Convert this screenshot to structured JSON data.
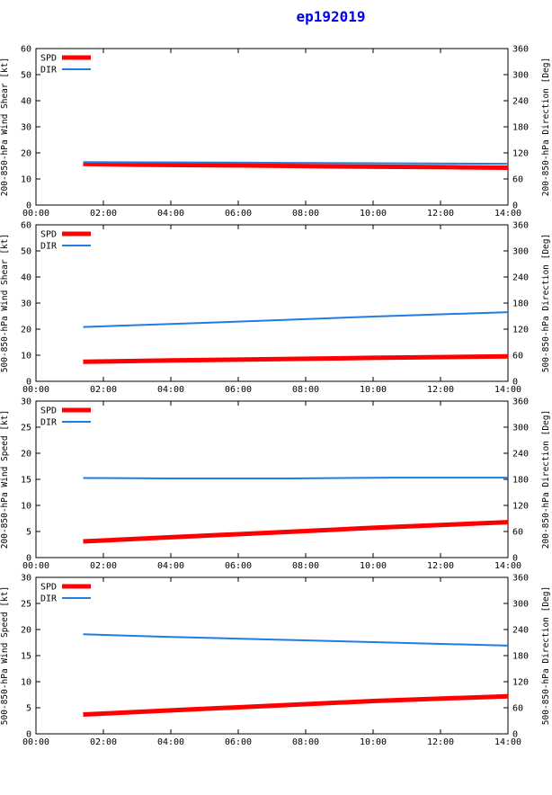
{
  "page_title": "ep192019",
  "colors": {
    "spd": "#ff0000",
    "dir": "#1e7fe0",
    "axis": "#000000",
    "title": "#0000ee"
  },
  "chart_data": [
    {
      "type": "line",
      "ylabel": "200-850-hPa Wind Shear [kt]",
      "y2label": "200-850-hPa Direction [Deg]",
      "ylim": [
        0,
        60
      ],
      "y2lim": [
        0,
        360
      ],
      "yticks": [
        "0",
        "10",
        "20",
        "30",
        "40",
        "50",
        "60"
      ],
      "y2ticks": [
        "0",
        "60",
        "120",
        "180",
        "240",
        "300",
        "360"
      ],
      "xlim": [
        0,
        14
      ],
      "xticks": [
        "00:00",
        "02:00",
        "04:00",
        "06:00",
        "08:00",
        "10:00",
        "12:00",
        "14:00"
      ],
      "legend": [
        "SPD",
        "DIR"
      ],
      "grid": false,
      "series": [
        {
          "name": "SPD",
          "axis": "left",
          "x": [
            1.4,
            3.0,
            6.0,
            9.2,
            12.3,
            14.0
          ],
          "values": [
            15.8,
            15.5,
            15.2,
            14.8,
            14.5,
            14.3
          ]
        },
        {
          "name": "DIR",
          "axis": "right",
          "x": [
            1.4,
            4.5,
            7.5,
            10.8,
            14.0
          ],
          "values": [
            99,
            98,
            97,
            96,
            95
          ]
        }
      ]
    },
    {
      "type": "line",
      "ylabel": "500-850-hPa Wind Shear [kt]",
      "y2label": "500-850-hPa Direction [Deg]",
      "ylim": [
        0,
        60
      ],
      "y2lim": [
        0,
        360
      ],
      "yticks": [
        "0",
        "10",
        "20",
        "30",
        "40",
        "50",
        "60"
      ],
      "y2ticks": [
        "0",
        "60",
        "120",
        "180",
        "240",
        "300",
        "360"
      ],
      "xlim": [
        0,
        14
      ],
      "xticks": [
        "00:00",
        "02:00",
        "04:00",
        "06:00",
        "08:00",
        "10:00",
        "12:00",
        "14:00"
      ],
      "legend": [
        "SPD",
        "DIR"
      ],
      "grid": false,
      "series": [
        {
          "name": "SPD",
          "axis": "left",
          "x": [
            1.4,
            4.0,
            7.0,
            10.0,
            14.0
          ],
          "values": [
            7.5,
            8.0,
            8.5,
            9.0,
            9.6
          ]
        },
        {
          "name": "DIR",
          "axis": "right",
          "x": [
            1.4,
            4.0,
            7.0,
            10.0,
            14.0
          ],
          "values": [
            125,
            132,
            140,
            149,
            159
          ]
        }
      ]
    },
    {
      "type": "line",
      "ylabel": "200-850-hPa Wind Speed [kt]",
      "y2label": "200-850-hPa Direction [Deg]",
      "ylim": [
        0,
        30
      ],
      "y2lim": [
        0,
        360
      ],
      "yticks": [
        "0",
        "5",
        "10",
        "15",
        "20",
        "25",
        "30"
      ],
      "y2ticks": [
        "0",
        "60",
        "120",
        "180",
        "240",
        "300",
        "360"
      ],
      "xlim": [
        0,
        14
      ],
      "xticks": [
        "00:00",
        "02:00",
        "04:00",
        "06:00",
        "08:00",
        "10:00",
        "12:00",
        "14:00"
      ],
      "legend": [
        "SPD",
        "DIR"
      ],
      "grid": false,
      "series": [
        {
          "name": "SPD",
          "axis": "left",
          "x": [
            1.4,
            4.0,
            7.0,
            10.0,
            14.0
          ],
          "values": [
            3.1,
            3.9,
            4.8,
            5.7,
            6.8
          ]
        },
        {
          "name": "DIR",
          "axis": "right",
          "x": [
            1.4,
            4.0,
            7.5,
            10.5,
            14.0
          ],
          "values": [
            183,
            182,
            182,
            184,
            184
          ]
        }
      ]
    },
    {
      "type": "line",
      "ylabel": "500-850-hPa Wind Speed [kt]",
      "y2label": "500-850-hPa Direction [Deg]",
      "ylim": [
        0,
        30
      ],
      "y2lim": [
        0,
        360
      ],
      "yticks": [
        "0",
        "5",
        "10",
        "15",
        "20",
        "25",
        "30"
      ],
      "y2ticks": [
        "0",
        "60",
        "120",
        "180",
        "240",
        "300",
        "360"
      ],
      "xlim": [
        0,
        14
      ],
      "xticks": [
        "00:00",
        "02:00",
        "04:00",
        "06:00",
        "08:00",
        "10:00",
        "12:00",
        "14:00"
      ],
      "legend": [
        "SPD",
        "DIR"
      ],
      "grid": false,
      "series": [
        {
          "name": "SPD",
          "axis": "left",
          "x": [
            1.4,
            4.0,
            7.0,
            10.0,
            14.0
          ],
          "values": [
            3.7,
            4.5,
            5.4,
            6.3,
            7.2
          ]
        },
        {
          "name": "DIR",
          "axis": "right",
          "x": [
            1.4,
            4.0,
            7.0,
            10.0,
            14.0
          ],
          "values": [
            229,
            223,
            217,
            211,
            203
          ]
        }
      ]
    }
  ]
}
